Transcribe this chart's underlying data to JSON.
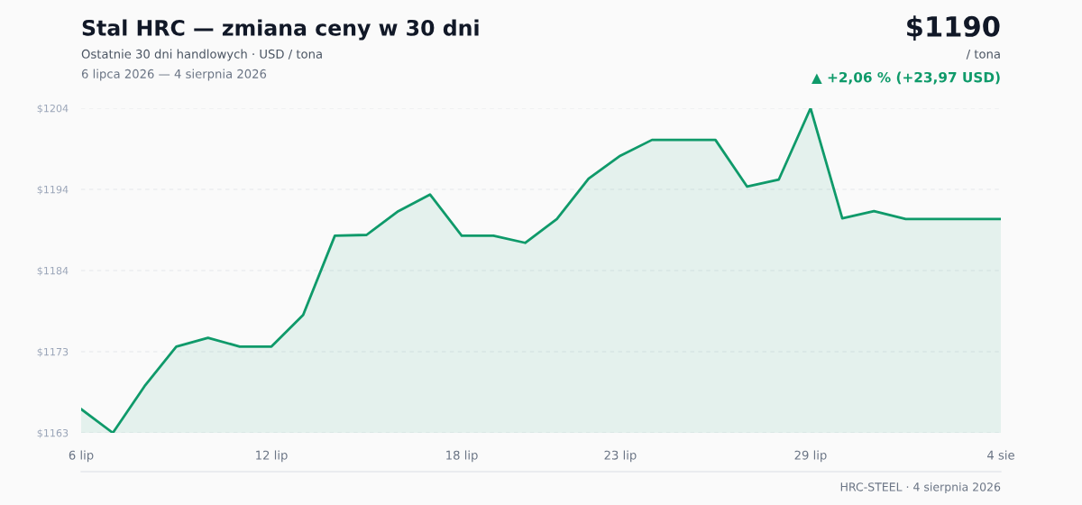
{
  "chart_data": {
    "type": "area",
    "title": "Stal HRC — zmiana ceny w 30 dni",
    "subtitle": "Ostatnie 30 dni handlowych · USD / tona",
    "annotations": [
      "6 lipca 2026 — 4 sierpnia 2026",
      "$1190",
      "/ tona",
      "▲ +2,06 % (+23,97 USD)",
      "HRC-STEEL · 4 sierpnia 2026"
    ],
    "categories": [
      "6 lip",
      null,
      null,
      null,
      null,
      null,
      "12 lip",
      null,
      null,
      null,
      null,
      null,
      "18 lip",
      null,
      null,
      null,
      null,
      "23 lip",
      null,
      null,
      null,
      null,
      null,
      "29 lip",
      null,
      null,
      null,
      null,
      null,
      "4 sie"
    ],
    "series": [
      {
        "color": "#0f9a6a",
        "values": [
          1166.0,
          1163.0,
          1168.9,
          1173.9,
          1175.0,
          1173.9,
          1173.9,
          1177.9,
          1187.9,
          1188.0,
          1191.0,
          1193.1,
          1187.9,
          1187.9,
          1187.0,
          1190.0,
          1195.1,
          1198.0,
          1200.0,
          1200.0,
          1200.0,
          1194.1,
          1195.0,
          1204.0,
          1190.1,
          1191.0,
          1190.0,
          1190.0,
          1190.0,
          1190.0
        ]
      }
    ],
    "ylim": [
      1163,
      1204
    ],
    "yticks": [
      {
        "value": 1163,
        "label": "$1163"
      },
      {
        "value": 1173.25,
        "label": "$1173"
      },
      {
        "value": 1183.5,
        "label": "$1184"
      },
      {
        "value": 1193.75,
        "label": "$1194"
      },
      {
        "value": 1204,
        "label": "$1204"
      }
    ],
    "grid": "y"
  }
}
